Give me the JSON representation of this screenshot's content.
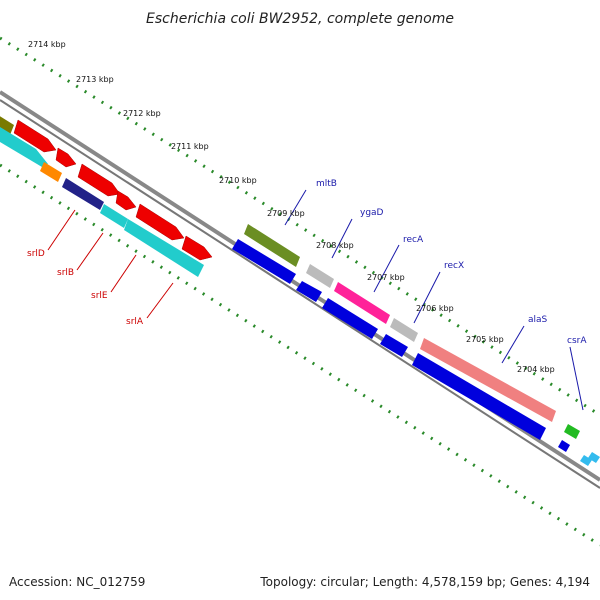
{
  "title": "Escherichia coli BW2952, complete genome",
  "footer": {
    "accession": "Accession: NC_012759",
    "topology": "Topology: circular; Length: 4,578,159 bp; Genes: 4,194"
  },
  "scale_labels": [
    "2714 kbp",
    "2713 kbp",
    "2712 kbp",
    "2711 kbp",
    "2710 kbp",
    "2709 kbp",
    "2708 kbp",
    "2707 kbp",
    "2706 kbp",
    "2705 kbp",
    "2704 kbp"
  ],
  "gene_labels": [
    {
      "name": "srlD",
      "color": "#cc0000"
    },
    {
      "name": "srlB",
      "color": "#cc0000"
    },
    {
      "name": "srlE",
      "color": "#cc0000"
    },
    {
      "name": "srlA",
      "color": "#cc0000"
    },
    {
      "name": "mltB",
      "color": "#1a1aaa"
    },
    {
      "name": "ygaD",
      "color": "#1a1aaa"
    },
    {
      "name": "recA",
      "color": "#1a1aaa"
    },
    {
      "name": "recX",
      "color": "#1a1aaa"
    },
    {
      "name": "alaS",
      "color": "#1a1aaa"
    },
    {
      "name": "csrA",
      "color": "#1a1aaa"
    }
  ],
  "colors": {
    "backbone": "#888888",
    "dots": "#2a8a2a",
    "red": "#ee0000",
    "orange": "#ff8800",
    "cyan": "#22cccc",
    "olive": "#6b8e23",
    "grey": "#bbbbbb",
    "magenta": "#ff2299",
    "salmon": "#f08080",
    "blue": "#0000dd",
    "green": "#22bb22",
    "navy": "#222288",
    "skyblue": "#33bbee"
  }
}
